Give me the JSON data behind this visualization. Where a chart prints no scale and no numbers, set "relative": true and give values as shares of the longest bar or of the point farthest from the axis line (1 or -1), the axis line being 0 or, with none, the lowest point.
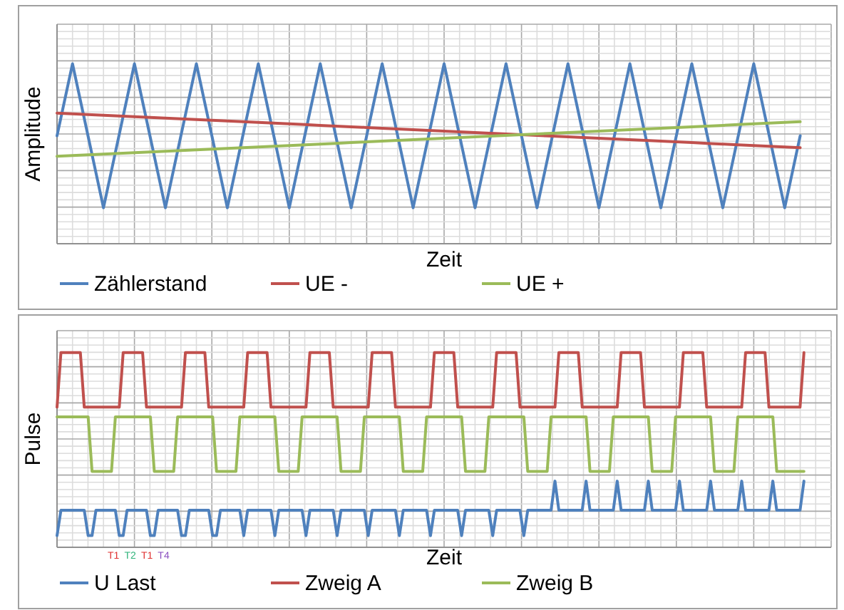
{
  "chart_data": [
    {
      "type": "line",
      "relative": true,
      "xlabel": "Zeit",
      "ylabel": "Amplitude",
      "grid": true,
      "legend": "bottom",
      "categories": [
        null,
        null,
        null,
        null,
        null,
        null,
        null,
        null,
        null,
        null,
        null,
        null,
        null,
        null,
        null,
        null,
        null,
        null,
        null,
        null,
        null,
        null,
        null,
        null,
        null,
        null,
        null,
        null,
        null,
        null,
        null,
        null,
        null,
        null,
        null,
        null,
        null,
        null,
        null,
        null,
        null,
        null,
        null,
        null,
        null,
        null,
        null,
        null,
        null,
        null,
        null
      ],
      "series": [
        {
          "name": "Zählerstand",
          "color": "#4f81bd",
          "values": [
            0.6,
            1,
            0.6,
            0.2,
            0.6,
            1,
            0.6,
            0.2,
            0.6,
            1,
            0.6,
            0.2,
            0.6,
            1,
            0.6,
            0.2,
            0.6,
            1,
            0.6,
            0.2,
            0.6,
            1,
            0.6,
            0.2,
            0.6,
            1,
            0.6,
            0.2,
            0.6,
            1,
            0.6,
            0.2,
            0.6,
            1,
            0.6,
            0.2,
            0.6,
            1,
            0.6,
            0.2,
            0.6,
            1,
            0.6,
            0.2,
            0.6,
            1,
            0.6,
            0.2,
            0.6,
            null,
            null
          ]
        },
        {
          "name": "UE -",
          "color": "#c0504d",
          "values": [
            0.726,
            0.722,
            0.718,
            0.714,
            0.71,
            0.706,
            0.702,
            0.698,
            0.694,
            0.69,
            0.686,
            0.682,
            0.678,
            0.674,
            0.67,
            0.666,
            0.662,
            0.658,
            0.654,
            0.65,
            0.646,
            0.642,
            0.638,
            0.634,
            0.63,
            0.626,
            0.622,
            0.618,
            0.614,
            0.61,
            0.606,
            0.602,
            0.598,
            0.594,
            0.59,
            0.586,
            0.582,
            0.578,
            0.574,
            0.57,
            0.566,
            0.562,
            0.558,
            0.554,
            0.55,
            0.546,
            0.542,
            0.538,
            0.534,
            null,
            null
          ]
        },
        {
          "name": "UE +",
          "color": "#9bbb59",
          "values": [
            0.486,
            0.49,
            0.494,
            0.498,
            0.502,
            0.506,
            0.51,
            0.514,
            0.518,
            0.522,
            0.526,
            0.53,
            0.534,
            0.538,
            0.542,
            0.546,
            0.55,
            0.554,
            0.558,
            0.562,
            0.566,
            0.57,
            0.574,
            0.578,
            0.582,
            0.586,
            0.59,
            0.594,
            0.598,
            0.602,
            0.606,
            0.61,
            0.614,
            0.618,
            0.622,
            0.626,
            0.63,
            0.634,
            0.638,
            0.642,
            0.646,
            0.65,
            0.654,
            0.658,
            0.662,
            0.666,
            0.67,
            0.674,
            0.678,
            null,
            null
          ]
        }
      ]
    },
    {
      "type": "line",
      "relative": true,
      "xlabel": "Zeit",
      "ylabel": "Pulse",
      "grid": true,
      "legend": "bottom",
      "annotations": [
        "T1",
        "T2",
        "T1",
        "T4"
      ],
      "categories": [
        null,
        null,
        null,
        null,
        null,
        null,
        null,
        null,
        null,
        null,
        null,
        null,
        null,
        null,
        null,
        null,
        null,
        null,
        null,
        null,
        null,
        null,
        null,
        null,
        null,
        null,
        null,
        null,
        null,
        null,
        null,
        null,
        null,
        null,
        null,
        null,
        null,
        null,
        null,
        null,
        null,
        null,
        null,
        null,
        null,
        null,
        null,
        null,
        null,
        null,
        null,
        null,
        null,
        null,
        null,
        null,
        null,
        null,
        null,
        null,
        null,
        null,
        null,
        null,
        null,
        null,
        null,
        null,
        null,
        null,
        null,
        null,
        null,
        null,
        null,
        null,
        null,
        null,
        null,
        null,
        null,
        null,
        null,
        null,
        null,
        null,
        null,
        null,
        null,
        null,
        null,
        null,
        null,
        null,
        null,
        null,
        null,
        null,
        null,
        null,
        null,
        null,
        null,
        null,
        null,
        null,
        null,
        null,
        null,
        null,
        null,
        null,
        null,
        null,
        null,
        null,
        null,
        null,
        null,
        null,
        null,
        null,
        null,
        null,
        null,
        null,
        null,
        null,
        null,
        null,
        null,
        null,
        null,
        null,
        null,
        null,
        null,
        null,
        null,
        null,
        null,
        null,
        null,
        null,
        null,
        null,
        null,
        null,
        null,
        null,
        null,
        null,
        null,
        null,
        null,
        null,
        null,
        null,
        null,
        null,
        null,
        null,
        null,
        null,
        null,
        null,
        null,
        null,
        null,
        null,
        null,
        null,
        null,
        null,
        null,
        null,
        null,
        null,
        null,
        null,
        null,
        null,
        null,
        null,
        null,
        null,
        null,
        null,
        null,
        null,
        null,
        null,
        null,
        null,
        null,
        null,
        null,
        null,
        null,
        null
      ],
      "series": [
        {
          "name": "U Last",
          "color": "#4f81bd",
          "values": [
            0.06,
            0.19,
            0.19,
            0.19,
            0.19,
            0.19,
            0.19,
            0.19,
            0.06,
            0.06,
            0.19,
            0.19,
            0.19,
            0.19,
            0.19,
            0.19,
            0.06,
            0.06,
            0.19,
            0.19,
            0.19,
            0.19,
            0.19,
            0.19,
            0.06,
            0.06,
            0.19,
            0.19,
            0.19,
            0.19,
            0.19,
            0.19,
            0.06,
            0.06,
            0.19,
            0.19,
            0.19,
            0.19,
            0.19,
            0.19,
            0.06,
            0.06,
            0.19,
            0.19,
            0.19,
            0.19,
            0.19,
            0.19,
            0.06,
            0.19,
            0.19,
            0.19,
            0.19,
            0.19,
            0.19,
            0.19,
            0.06,
            0.19,
            0.19,
            0.19,
            0.19,
            0.19,
            0.19,
            0.19,
            0.06,
            0.19,
            0.19,
            0.19,
            0.19,
            0.19,
            0.19,
            0.19,
            0.06,
            0.19,
            0.19,
            0.19,
            0.19,
            0.19,
            0.19,
            0.19,
            0.06,
            0.19,
            0.19,
            0.19,
            0.19,
            0.19,
            0.19,
            0.19,
            0.06,
            0.19,
            0.19,
            0.19,
            0.19,
            0.19,
            0.19,
            0.19,
            0.06,
            0.19,
            0.19,
            0.19,
            0.19,
            0.19,
            0.19,
            0.19,
            0.06,
            0.19,
            0.19,
            0.19,
            0.19,
            0.19,
            0.19,
            0.19,
            0.06,
            0.19,
            0.19,
            0.19,
            0.19,
            0.19,
            0.19,
            0.19,
            0.06,
            0.19,
            0.19,
            0.19,
            0.19,
            0.19,
            0.19,
            0.19,
            0.34,
            0.19,
            0.19,
            0.19,
            0.19,
            0.19,
            0.19,
            0.19,
            0.34,
            0.19,
            0.19,
            0.19,
            0.19,
            0.19,
            0.19,
            0.19,
            0.34,
            0.19,
            0.19,
            0.19,
            0.19,
            0.19,
            0.19,
            0.19,
            0.34,
            0.19,
            0.19,
            0.19,
            0.19,
            0.19,
            0.19,
            0.19,
            0.34,
            0.19,
            0.19,
            0.19,
            0.19,
            0.19,
            0.19,
            0.19,
            0.34,
            0.19,
            0.19,
            0.19,
            0.19,
            0.19,
            0.19,
            0.19,
            0.34,
            0.19,
            0.19,
            0.19,
            0.19,
            0.19,
            0.19,
            0.19,
            0.34,
            0.19,
            0.19,
            0.19,
            0.19,
            0.19,
            0.19,
            0.19,
            0.34,
            null,
            null,
            null,
            null,
            null,
            null,
            null
          ]
        },
        {
          "name": "Zweig A",
          "color": "#c0504d",
          "values": [
            0.72,
            1,
            1,
            1,
            1,
            1,
            1,
            0.72,
            0.72,
            0.72,
            0.72,
            0.72,
            0.72,
            0.72,
            0.72,
            0.72,
            0.72,
            1,
            1,
            1,
            1,
            1,
            1,
            0.72,
            0.72,
            0.72,
            0.72,
            0.72,
            0.72,
            0.72,
            0.72,
            0.72,
            0.72,
            1,
            1,
            1,
            1,
            1,
            1,
            0.72,
            0.72,
            0.72,
            0.72,
            0.72,
            0.72,
            0.72,
            0.72,
            0.72,
            0.72,
            1,
            1,
            1,
            1,
            1,
            1,
            0.72,
            0.72,
            0.72,
            0.72,
            0.72,
            0.72,
            0.72,
            0.72,
            0.72,
            0.72,
            1,
            1,
            1,
            1,
            1,
            1,
            0.72,
            0.72,
            0.72,
            0.72,
            0.72,
            0.72,
            0.72,
            0.72,
            0.72,
            0.72,
            1,
            1,
            1,
            1,
            1,
            1,
            0.72,
            0.72,
            0.72,
            0.72,
            0.72,
            0.72,
            0.72,
            0.72,
            0.72,
            0.72,
            1,
            1,
            1,
            1,
            1,
            1,
            0.72,
            0.72,
            0.72,
            0.72,
            0.72,
            0.72,
            0.72,
            0.72,
            0.72,
            0.72,
            1,
            1,
            1,
            1,
            1,
            1,
            0.72,
            0.72,
            0.72,
            0.72,
            0.72,
            0.72,
            0.72,
            0.72,
            0.72,
            0.72,
            1,
            1,
            1,
            1,
            1,
            1,
            0.72,
            0.72,
            0.72,
            0.72,
            0.72,
            0.72,
            0.72,
            0.72,
            0.72,
            0.72,
            1,
            1,
            1,
            1,
            1,
            1,
            0.72,
            0.72,
            0.72,
            0.72,
            0.72,
            0.72,
            0.72,
            0.72,
            0.72,
            0.72,
            1,
            1,
            1,
            1,
            1,
            1,
            0.72,
            0.72,
            0.72,
            0.72,
            0.72,
            0.72,
            0.72,
            0.72,
            0.72,
            0.72,
            1,
            1,
            1,
            1,
            1,
            1,
            0.72,
            0.72,
            0.72,
            0.72,
            0.72,
            0.72,
            0.72,
            0.72,
            0.72,
            1,
            null,
            null,
            null,
            null,
            null,
            null,
            null
          ]
        },
        {
          "name": "Zweig B",
          "color": "#9bbb59",
          "values": [
            0.67,
            0.67,
            0.67,
            0.67,
            0.67,
            0.67,
            0.67,
            0.67,
            0.67,
            0.39,
            0.39,
            0.39,
            0.39,
            0.39,
            0.39,
            0.67,
            0.67,
            0.67,
            0.67,
            0.67,
            0.67,
            0.67,
            0.67,
            0.67,
            0.67,
            0.39,
            0.39,
            0.39,
            0.39,
            0.39,
            0.39,
            0.67,
            0.67,
            0.67,
            0.67,
            0.67,
            0.67,
            0.67,
            0.67,
            0.67,
            0.67,
            0.39,
            0.39,
            0.39,
            0.39,
            0.39,
            0.39,
            0.67,
            0.67,
            0.67,
            0.67,
            0.67,
            0.67,
            0.67,
            0.67,
            0.67,
            0.67,
            0.39,
            0.39,
            0.39,
            0.39,
            0.39,
            0.39,
            0.67,
            0.67,
            0.67,
            0.67,
            0.67,
            0.67,
            0.67,
            0.67,
            0.67,
            0.67,
            0.39,
            0.39,
            0.39,
            0.39,
            0.39,
            0.39,
            0.67,
            0.67,
            0.67,
            0.67,
            0.67,
            0.67,
            0.67,
            0.67,
            0.67,
            0.67,
            0.39,
            0.39,
            0.39,
            0.39,
            0.39,
            0.39,
            0.67,
            0.67,
            0.67,
            0.67,
            0.67,
            0.67,
            0.67,
            0.67,
            0.67,
            0.67,
            0.39,
            0.39,
            0.39,
            0.39,
            0.39,
            0.39,
            0.67,
            0.67,
            0.67,
            0.67,
            0.67,
            0.67,
            0.67,
            0.67,
            0.67,
            0.67,
            0.39,
            0.39,
            0.39,
            0.39,
            0.39,
            0.39,
            0.67,
            0.67,
            0.67,
            0.67,
            0.67,
            0.67,
            0.67,
            0.67,
            0.67,
            0.67,
            0.39,
            0.39,
            0.39,
            0.39,
            0.39,
            0.39,
            0.67,
            0.67,
            0.67,
            0.67,
            0.67,
            0.67,
            0.67,
            0.67,
            0.67,
            0.67,
            0.39,
            0.39,
            0.39,
            0.39,
            0.39,
            0.39,
            0.67,
            0.67,
            0.67,
            0.67,
            0.67,
            0.67,
            0.67,
            0.67,
            0.67,
            0.67,
            0.39,
            0.39,
            0.39,
            0.39,
            0.39,
            0.39,
            0.67,
            0.67,
            0.67,
            0.67,
            0.67,
            0.67,
            0.67,
            0.67,
            0.67,
            0.67,
            0.39,
            0.39,
            0.39,
            0.39,
            0.39,
            0.39,
            0.39,
            0.39,
            null,
            null,
            null,
            null,
            null,
            null,
            null
          ]
        }
      ]
    }
  ]
}
